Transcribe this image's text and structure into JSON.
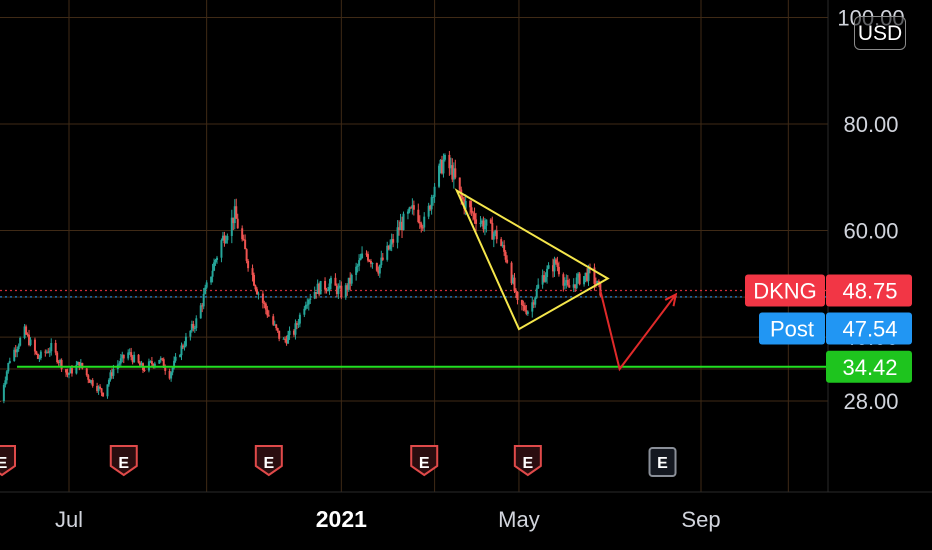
{
  "currency": "USD",
  "colors": {
    "background": "#000000",
    "grid": "#3f2a16",
    "candle_up": "#26a69a",
    "candle_down": "#ef5350",
    "triangle": "#f5e64b",
    "support": "#22e022",
    "projection": "#e02a2a",
    "earnings": "#e04a4a",
    "earnings_future": "#8a8f98"
  },
  "chart_data": {
    "type": "candlestick",
    "symbol": "DKNG",
    "y_ticks": [
      {
        "value": 100,
        "label": "100.00"
      },
      {
        "value": 80,
        "label": "80.00"
      },
      {
        "value": 60,
        "label": "60.00"
      },
      {
        "value": 40,
        "label": "40.00"
      },
      {
        "value": 28,
        "label": "28.00"
      }
    ],
    "x_ticks": [
      {
        "date": "2020-07-01",
        "label": "Jul",
        "bold": false
      },
      {
        "date": "2021-01-01",
        "label": "2021",
        "bold": true
      },
      {
        "date": "2021-05-01",
        "label": "May",
        "bold": false
      },
      {
        "date": "2021-09-01",
        "label": "Sep",
        "bold": false
      }
    ],
    "extra_gridlines_y": [
      47.5,
      34.0
    ],
    "extra_gridlines_x": [
      "2020-04-30",
      "2020-10-02",
      "2021-03-05",
      "2021-10-30"
    ],
    "price_path": [
      [
        "2020-05-15",
        28
      ],
      [
        "2020-05-22",
        36
      ],
      [
        "2020-06-01",
        41
      ],
      [
        "2020-06-10",
        36
      ],
      [
        "2020-06-19",
        38
      ],
      [
        "2020-06-30",
        33
      ],
      [
        "2020-07-08",
        35
      ],
      [
        "2020-07-15",
        32
      ],
      [
        "2020-07-24",
        29.5
      ],
      [
        "2020-07-31",
        34
      ],
      [
        "2020-08-10",
        37
      ],
      [
        "2020-08-20",
        34
      ],
      [
        "2020-08-31",
        36
      ],
      [
        "2020-09-07",
        33
      ],
      [
        "2020-09-15",
        38
      ],
      [
        "2020-09-25",
        43
      ],
      [
        "2020-10-05",
        52
      ],
      [
        "2020-10-12",
        58
      ],
      [
        "2020-10-21",
        63
      ],
      [
        "2020-10-29",
        55
      ],
      [
        "2020-11-05",
        49
      ],
      [
        "2020-11-13",
        44
      ],
      [
        "2020-11-22",
        39
      ],
      [
        "2020-11-30",
        41
      ],
      [
        "2020-12-08",
        47
      ],
      [
        "2020-12-15",
        49
      ],
      [
        "2020-12-25",
        50
      ],
      [
        "2021-01-02",
        48
      ],
      [
        "2021-01-08",
        51
      ],
      [
        "2021-01-17",
        56
      ],
      [
        "2021-01-26",
        53
      ],
      [
        "2021-02-03",
        57
      ],
      [
        "2021-02-10",
        61
      ],
      [
        "2021-02-19",
        64
      ],
      [
        "2021-02-27",
        61
      ],
      [
        "2021-03-04",
        68
      ],
      [
        "2021-03-11",
        73
      ],
      [
        "2021-03-17",
        71
      ],
      [
        "2021-03-23",
        66
      ],
      [
        "2021-03-31",
        63
      ],
      [
        "2021-04-08",
        61
      ],
      [
        "2021-04-16",
        59
      ],
      [
        "2021-04-24",
        54
      ],
      [
        "2021-04-30",
        46
      ],
      [
        "2021-05-08",
        45
      ],
      [
        "2021-05-16",
        51
      ],
      [
        "2021-05-26",
        54
      ],
      [
        "2021-06-03",
        49
      ],
      [
        "2021-06-11",
        51
      ],
      [
        "2021-06-18",
        52
      ],
      [
        "2021-06-25",
        48.75
      ]
    ],
    "patterns": {
      "triangle": [
        [
          "2021-03-20",
          67.5
        ],
        [
          "2021-06-30",
          51
        ],
        [
          "2021-05-01",
          41.5
        ]
      ],
      "support": {
        "price": 34.42
      },
      "projection": [
        [
          "2021-06-25",
          48.75
        ],
        [
          "2021-07-08",
          34
        ],
        [
          "2021-08-15",
          48
        ]
      ]
    },
    "earnings_markers": [
      {
        "date": "2020-05-05",
        "label": "E",
        "past": true
      },
      {
        "date": "2020-08-07",
        "label": "E",
        "past": true
      },
      {
        "date": "2020-11-13",
        "label": "E",
        "past": true
      },
      {
        "date": "2021-02-26",
        "label": "E",
        "past": true
      },
      {
        "date": "2021-05-07",
        "label": "E",
        "past": true
      },
      {
        "date": "2021-08-06",
        "label": "E",
        "past": false
      }
    ],
    "price_tags": [
      {
        "label": "DKNG",
        "value": "48.75",
        "price": 48.75,
        "color": "#f23645"
      },
      {
        "label": "Post",
        "value": "47.54",
        "price": 47.54,
        "color": "#2196f3"
      },
      {
        "label": "",
        "value": "34.42",
        "price": 34.42,
        "color": "#1ec41e"
      }
    ]
  }
}
